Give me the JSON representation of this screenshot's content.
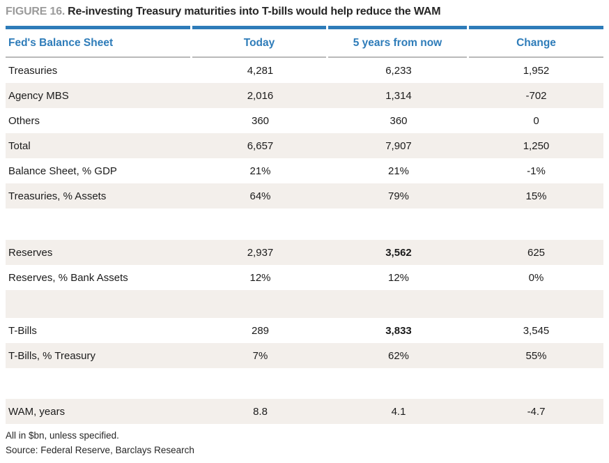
{
  "figure": {
    "label": "FIGURE 16.",
    "title": "Re-investing Treasury maturities into T-bills would help reduce the WAM"
  },
  "table": {
    "columns": [
      "Fed's Balance Sheet",
      "Today",
      "5 years from now",
      "Change"
    ],
    "rows": [
      {
        "label": "Treasuries",
        "today": "4,281",
        "future": "6,233",
        "change": "1,952"
      },
      {
        "label": "Agency MBS",
        "today": "2,016",
        "future": "1,314",
        "change": "-702"
      },
      {
        "label": "Others",
        "today": "360",
        "future": "360",
        "change": "0"
      },
      {
        "label": "Total",
        "today": "6,657",
        "future": "7,907",
        "change": "1,250"
      },
      {
        "label": "Balance Sheet, % GDP",
        "today": "21%",
        "future": "21%",
        "change": "-1%"
      },
      {
        "label": "Treasuries, % Assets",
        "today": "64%",
        "future": "79%",
        "change": "15%"
      },
      {
        "label": "Reserves",
        "today": "2,937",
        "future": "3,562",
        "change": "625"
      },
      {
        "label": "Reserves, % Bank Assets",
        "today": "12%",
        "future": "12%",
        "change": "0%"
      },
      {
        "label": "T-Bills",
        "today": "289",
        "future": "3,833",
        "change": "3,545"
      },
      {
        "label": "T-Bills, % Treasury",
        "today": "7%",
        "future": "62%",
        "change": "55%"
      },
      {
        "label": "WAM, years",
        "today": "8.8",
        "future": "4.1",
        "change": "-4.7"
      }
    ]
  },
  "footnotes": [
    "All in $bn, unless specified.",
    "Source: Federal Reserve, Barclays Research"
  ],
  "colors": {
    "accent_blue": "#2e7cb9",
    "stripe_beige": "#f3efeb",
    "rule_gray": "#b9b9b9",
    "figure_label_gray": "#9b9b9b"
  }
}
